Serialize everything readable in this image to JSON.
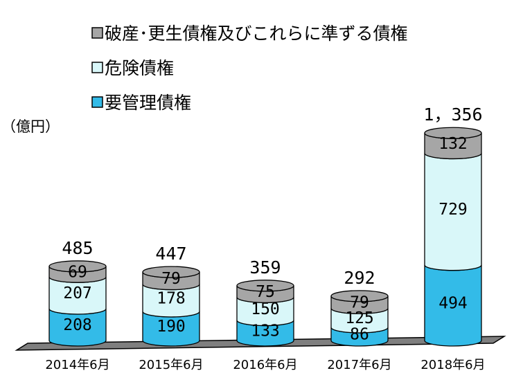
{
  "chart_data": {
    "type": "bar",
    "stacked": true,
    "categories": [
      "2014年6月",
      "2015年6月",
      "2016年6月",
      "2017年6月",
      "2018年6月"
    ],
    "series": [
      {
        "name": "要管理債権",
        "values": [
          208,
          190,
          133,
          86,
          494
        ],
        "color": "#33bbe8"
      },
      {
        "name": "危険債権",
        "values": [
          207,
          178,
          150,
          125,
          729
        ],
        "color": "#d9f7f9"
      },
      {
        "name": "破産･更生債権及びこれらに準ずる債権",
        "values": [
          69,
          79,
          75,
          79,
          132
        ],
        "color": "#a6a6a6"
      }
    ],
    "totals": [
      "485",
      "447",
      "359",
      "292",
      "1，356"
    ],
    "ylabel": "（億円）",
    "ylim": [
      0,
      1356
    ],
    "legend_position": "top"
  }
}
